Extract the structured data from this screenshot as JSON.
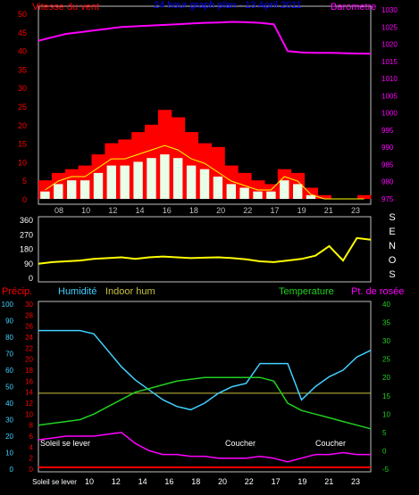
{
  "colors": {
    "wind_red": "#ff0000",
    "wind_gust": "#ffff00",
    "wind_avg": "#e8ffe8",
    "barometer": "#ff00ff",
    "direction": "#ffff00",
    "precip": "#ff0000",
    "humidity": "#40d0ff",
    "indoor_hum": "#c8c040",
    "temperature": "#20d020",
    "dewpoint": "#ff00ff",
    "title": "#0000ff",
    "axis": "#c0c0c0"
  },
  "chart_data": [
    {
      "type": "area",
      "title": "24 hour graph plan - 13 April 2011",
      "left_axis_label": "Vitesse du vent",
      "right_axis_label": "Barometre",
      "x_ticks": [
        "08",
        "10",
        "12",
        "14",
        "16",
        "18",
        "20",
        "22",
        "17",
        "19",
        "21",
        "23"
      ],
      "left_ticks": [
        "0",
        "5",
        "10",
        "15",
        "20",
        "25",
        "30",
        "35",
        "40",
        "45",
        "50"
      ],
      "right_ticks": [
        "975",
        "980",
        "985",
        "990",
        "995",
        "1000",
        "1005",
        "1010",
        "1015",
        "1020",
        "1025",
        "1030"
      ],
      "left_range": [
        0,
        50
      ],
      "right_range": [
        975,
        1030
      ],
      "series": [
        {
          "name": "Barometre",
          "values": [
            1021,
            1022,
            1023,
            1023.5,
            1024,
            1024.5,
            1025,
            1025.2,
            1025.4,
            1025.6,
            1025.8,
            1026,
            1026.2,
            1026.3,
            1026.5,
            1026.4,
            1026.2,
            1025.8,
            1018,
            1017.6,
            1017.5,
            1017.5,
            1017.4,
            1017.3,
            1017.2
          ]
        },
        {
          "name": "Rafales",
          "values": [
            5,
            7,
            8,
            9,
            12,
            15,
            16,
            18,
            20,
            24,
            22,
            18,
            15,
            14,
            9,
            7,
            5,
            4,
            8,
            7,
            3,
            1,
            0,
            0,
            1
          ]
        },
        {
          "name": "Moyenne",
          "values": [
            2,
            4,
            5,
            5,
            7,
            9,
            9,
            10,
            11,
            12,
            11,
            9,
            8,
            6,
            4,
            3,
            2,
            2,
            5,
            4,
            1,
            0,
            0,
            0,
            0
          ]
        }
      ]
    },
    {
      "type": "line",
      "title": "",
      "left_ticks": [
        "0",
        "90",
        "180",
        "270",
        "360"
      ],
      "left_range": [
        0,
        360
      ],
      "direction_letters": [
        "S",
        "E",
        "N",
        "O",
        "S"
      ],
      "series": [
        {
          "name": "Direction",
          "values": [
            90,
            100,
            105,
            110,
            120,
            125,
            130,
            120,
            130,
            135,
            130,
            125,
            128,
            130,
            125,
            118,
            105,
            100,
            110,
            120,
            140,
            200,
            110,
            250,
            240
          ]
        }
      ]
    },
    {
      "type": "line",
      "labels": {
        "precip": "Précip.",
        "humidity": "Humidité",
        "indoor": "Indoor hum",
        "temperature": "Temperature",
        "dewpoint": "Pt. de rosée"
      },
      "left_ticks_hum": [
        "0",
        "10",
        "20",
        "30",
        "40",
        "50",
        "60",
        "70",
        "80",
        "90",
        "100"
      ],
      "left_ticks_precip": [
        "0",
        "2",
        "4",
        "6",
        "8",
        "10",
        "12",
        "14",
        "16",
        "18",
        "20",
        "22",
        "24",
        "26",
        "28",
        "30"
      ],
      "right_ticks_temp": [
        "-5",
        "0",
        "5",
        "10",
        "15",
        "20",
        "25",
        "30",
        "35",
        "40"
      ],
      "x_ticks": [
        "Soleil se lever",
        "10",
        "12",
        "14",
        "16",
        "18",
        "20",
        "22",
        "17",
        "19",
        "21",
        "23"
      ],
      "annotations": [
        "Soleil se lever",
        "Coucher",
        "Coucher"
      ],
      "humidity_range": [
        0,
        100
      ],
      "temp_range": [
        -5,
        40
      ],
      "series": [
        {
          "name": "Humidité",
          "values": [
            84,
            84,
            84,
            84,
            82,
            72,
            62,
            54,
            48,
            42,
            38,
            36,
            40,
            46,
            50,
            52,
            64,
            64,
            64,
            42,
            50,
            56,
            60,
            68,
            72
          ]
        },
        {
          "name": "Indoor hum",
          "values": [
            46,
            46,
            46,
            46,
            46,
            46,
            46,
            46,
            46,
            46,
            46,
            46,
            46,
            46,
            46,
            46,
            46,
            46,
            46,
            46,
            46,
            46,
            46,
            46,
            46
          ]
        },
        {
          "name": "Temperature",
          "values": [
            7,
            7.5,
            8,
            8.5,
            10,
            12,
            14,
            16,
            17,
            18,
            19,
            19.5,
            20,
            20,
            20,
            20,
            20,
            19,
            13,
            11,
            10,
            9,
            8,
            7,
            6
          ]
        },
        {
          "name": "Pt. de rosée",
          "values": [
            3,
            3.5,
            4,
            4,
            4,
            4.5,
            5,
            2,
            0,
            -1,
            -1,
            -1.5,
            -1.5,
            -2,
            -2,
            -2,
            -1.5,
            -2,
            -3,
            -2,
            -1,
            -1,
            -0.5,
            -1,
            -1
          ]
        },
        {
          "name": "Précip.",
          "values": [
            0,
            0,
            0,
            0,
            0,
            0,
            0,
            0,
            0,
            0,
            0,
            0,
            0,
            0,
            0,
            0,
            0,
            0,
            0,
            0,
            0,
            0,
            0,
            0,
            0
          ]
        }
      ]
    }
  ]
}
